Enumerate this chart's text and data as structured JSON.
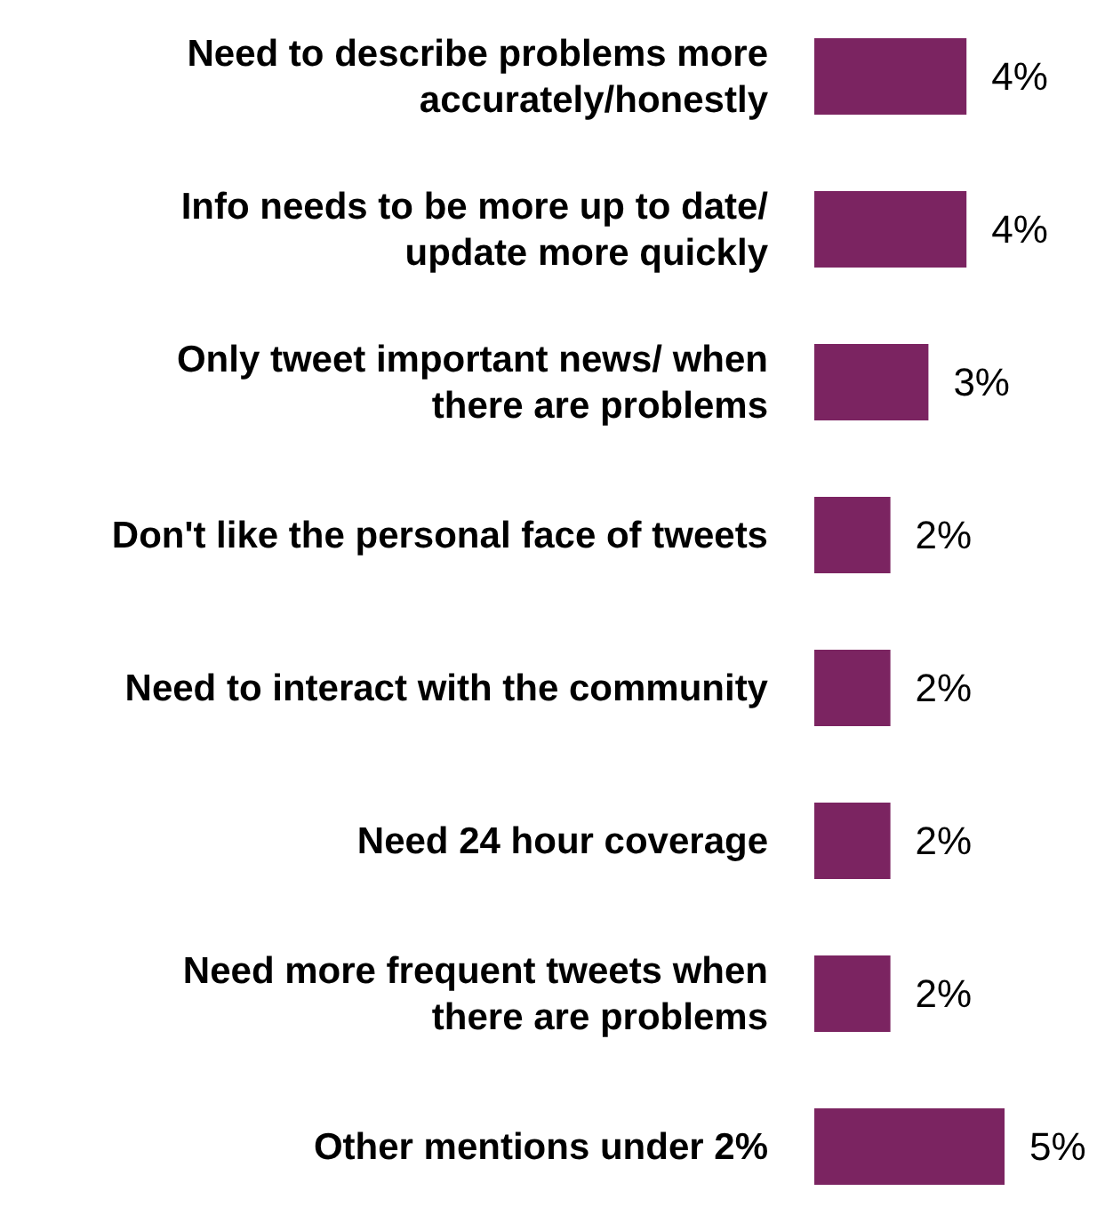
{
  "chart_data": {
    "type": "bar",
    "orientation": "horizontal",
    "categories": [
      "Need to describe problems more accurately/honestly",
      "Info needs to be more up to date/ update more quickly",
      "Only tweet important news/ when there are problems",
      "Don't like the personal face of tweets",
      "Need to interact with the community",
      "Need 24 hour coverage",
      "Need more frequent tweets when there are problems",
      "Other mentions under 2%"
    ],
    "values": [
      4,
      4,
      3,
      2,
      2,
      2,
      2,
      5
    ],
    "value_labels": [
      "4%",
      "4%",
      "3%",
      "2%",
      "2%",
      "2%",
      "2%",
      "5%"
    ],
    "color": "#7b2461"
  }
}
